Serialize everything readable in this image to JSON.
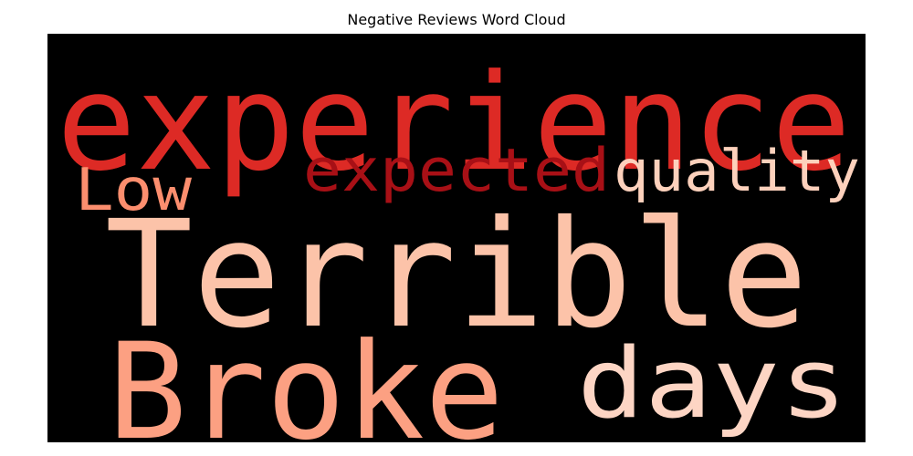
{
  "title": "Negative Reviews Word Cloud",
  "chart_data": {
    "type": "wordcloud",
    "title": "Negative Reviews Word Cloud",
    "background": "#000000",
    "colormap": "Reds",
    "words": [
      {
        "text": "experience",
        "color": "#dd2a25"
      },
      {
        "text": "Terrible",
        "color": "#fcc3a9"
      },
      {
        "text": "Broke",
        "color": "#fca082"
      },
      {
        "text": "days",
        "color": "#fdd5c4"
      },
      {
        "text": "expected",
        "color": "#a81016"
      },
      {
        "text": "quality",
        "color": "#fdd1bc"
      },
      {
        "text": "Low",
        "color": "#fc8e6e"
      }
    ]
  }
}
